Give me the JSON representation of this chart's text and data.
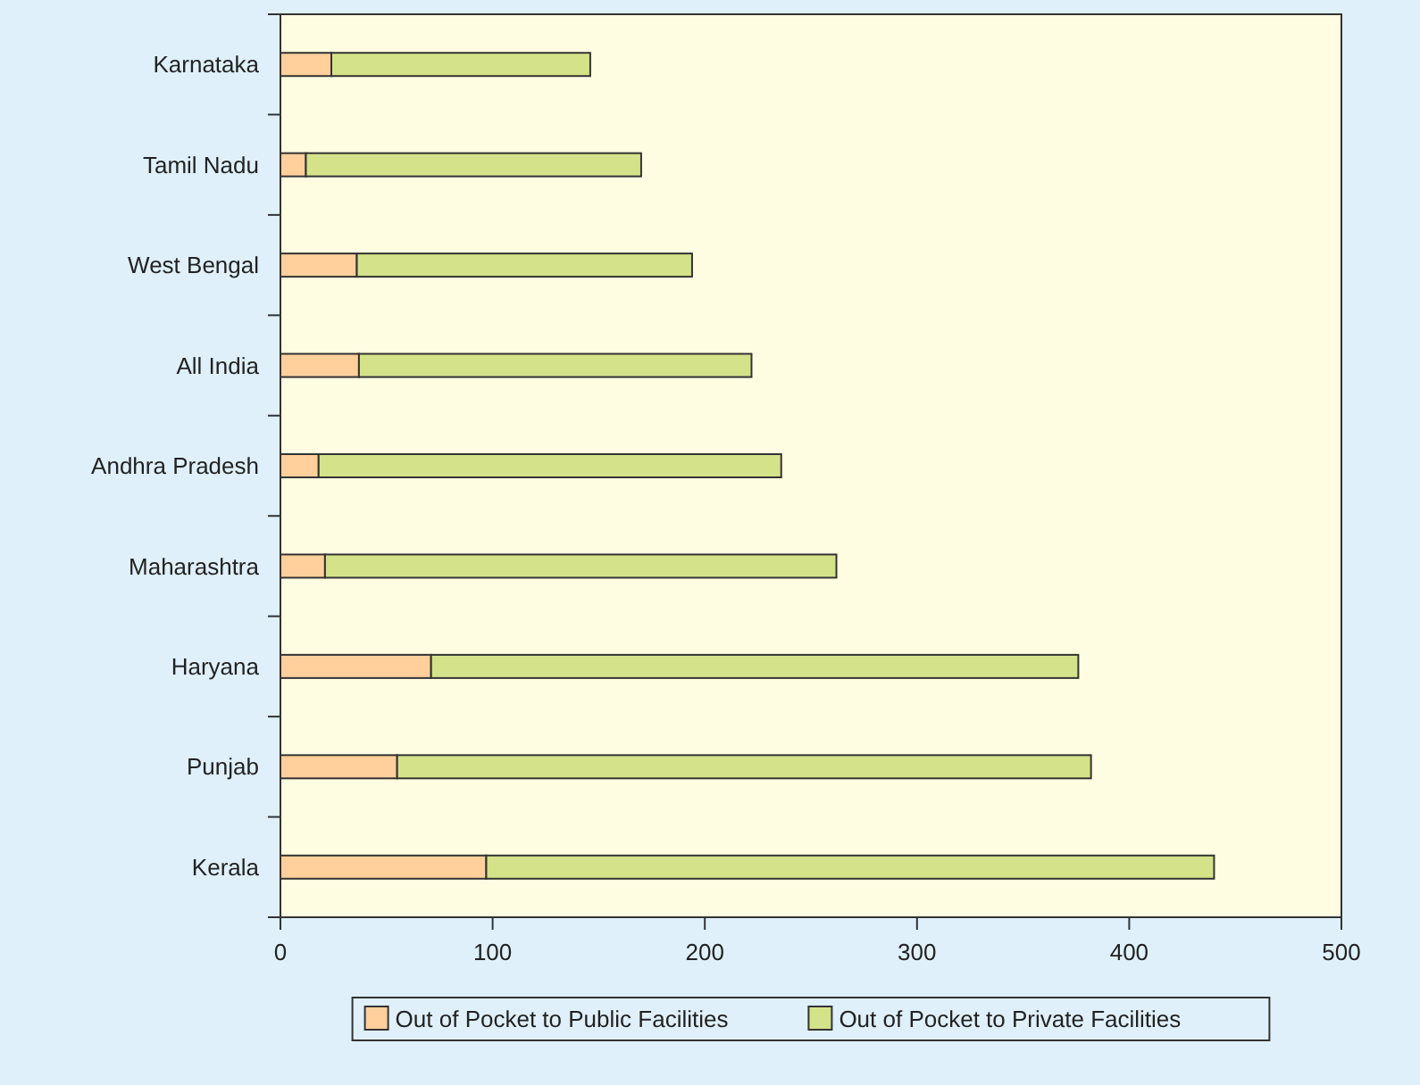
{
  "chart_data": {
    "type": "bar",
    "orientation": "horizontal",
    "stacked": true,
    "categories": [
      "Karnataka",
      "Tamil Nadu",
      "West Bengal",
      "All India",
      "Andhra Pradesh",
      "Maharashtra",
      "Haryana",
      "Punjab",
      "Kerala"
    ],
    "series": [
      {
        "name": "Out of Pocket to Public Facilities",
        "color": "#ffcf9c",
        "values": [
          24,
          12,
          36,
          37,
          18,
          21,
          71,
          55,
          97
        ]
      },
      {
        "name": "Out of Pocket to Private Facilities",
        "color": "#d4e389",
        "values": [
          122,
          158,
          158,
          185,
          218,
          241,
          305,
          327,
          343
        ]
      }
    ],
    "xlim": [
      0,
      500
    ],
    "xticks": [
      0,
      100,
      200,
      300,
      400,
      500
    ],
    "grid": false,
    "legend": "bottom"
  }
}
